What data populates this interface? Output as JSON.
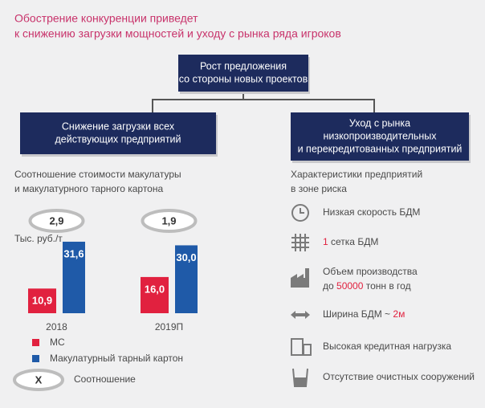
{
  "header": {
    "title": [
      "Обострение конкуренции приведет",
      "к снижению загрузки мощностей и уходу с рынка ряда игроков"
    ]
  },
  "diagram": {
    "top_box": [
      "Рост предложения",
      "со стороны новых проектов"
    ],
    "left_box": [
      "Снижение загрузки всех",
      "действующих предприятий"
    ],
    "right_box": [
      "Уход с рынка",
      "низкопроизводительных",
      "и перекредитованных предприятий"
    ]
  },
  "chart_data": {
    "type": "bar",
    "subtitle": [
      "Соотношение стоимости макулатуры",
      "и макулатурного тарного картона"
    ],
    "unit_label": "Тыс. руб./т",
    "categories": [
      "2018",
      "2019П"
    ],
    "series": [
      {
        "name": "МС",
        "color": "#e1213f",
        "values": [
          10.9,
          16.0
        ],
        "value_labels": [
          "10,9",
          "16,0"
        ]
      },
      {
        "name": "Макулатурный тарный картон",
        "color": "#1f5aa8",
        "values": [
          31.6,
          30.0
        ],
        "value_labels": [
          "31,6",
          "30,0"
        ]
      }
    ],
    "ratios": [
      2.9,
      1.9
    ],
    "ratio_labels": [
      "2,9",
      "1,9"
    ],
    "ratio_legend": {
      "symbol": "X",
      "label": "Соотношение"
    },
    "ylim": [
      0,
      55
    ]
  },
  "risk": {
    "title": [
      "Характеристики предприятий",
      "в зоне риска"
    ],
    "items": [
      {
        "icon": "clock",
        "lines": [
          [
            {
              "text": "Низкая скорость БДМ"
            }
          ]
        ]
      },
      {
        "icon": "grid",
        "lines": [
          [
            {
              "text": "1",
              "accent": true
            },
            {
              "text": " сетка БДМ"
            }
          ]
        ]
      },
      {
        "icon": "factory",
        "lines": [
          [
            {
              "text": "Объем производства"
            }
          ],
          [
            {
              "text": "до "
            },
            {
              "text": "50000",
              "accent": true
            },
            {
              "text": " тонн в год"
            }
          ]
        ]
      },
      {
        "icon": "arrow",
        "lines": [
          [
            {
              "text": "Ширина БДМ ~ "
            },
            {
              "text": "2м",
              "accent": true
            }
          ]
        ]
      },
      {
        "icon": "calc",
        "lines": [
          [
            {
              "text": "Высокая кредитная нагрузка"
            }
          ]
        ]
      },
      {
        "icon": "glass",
        "lines": [
          [
            {
              "text": "Отсутствие очистных сооружений"
            }
          ]
        ]
      }
    ]
  }
}
